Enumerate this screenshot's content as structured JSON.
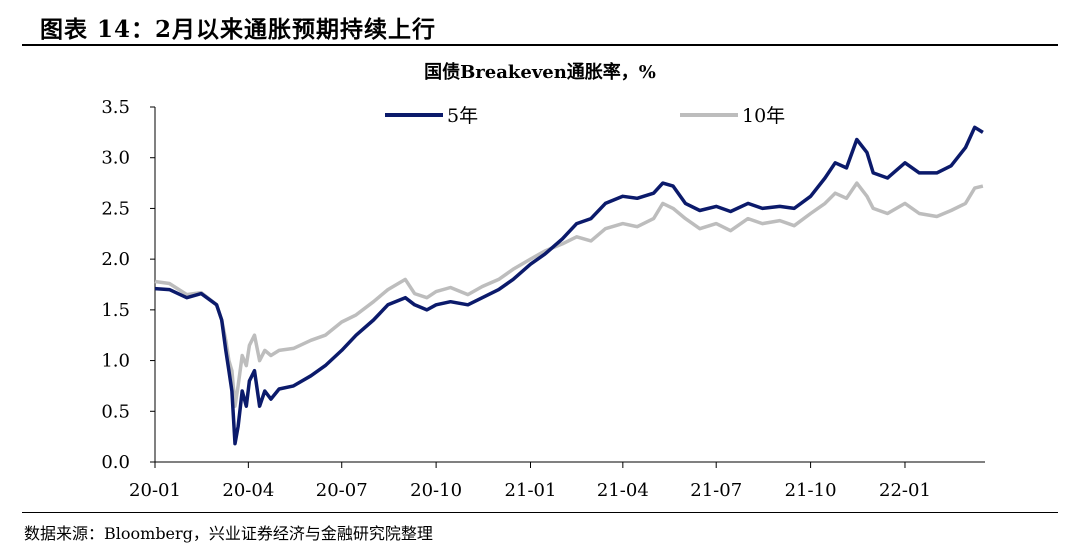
{
  "figure": {
    "title": "图表 14：2月以来通胀预期持续上行",
    "source": "数据来源：Bloomberg，兴业证券经济与金融研究院整理"
  },
  "chart_data": {
    "type": "line",
    "title": "国债Breakeven通胀率，%",
    "xlabel": "",
    "ylabel": "",
    "ylim": [
      0,
      3.5
    ],
    "xlim": [
      "2020-01",
      "2022-03-20"
    ],
    "yticks": [
      "0.0",
      "0.5",
      "1.0",
      "1.5",
      "2.0",
      "2.5",
      "3.0",
      "3.5"
    ],
    "xticks": [
      "20-01",
      "20-04",
      "20-07",
      "20-10",
      "21-01",
      "21-04",
      "21-07",
      "21-10",
      "22-01"
    ],
    "grid": false,
    "legend": "top",
    "series": [
      {
        "name": "5年",
        "color": "#0b1a6b",
        "points": [
          [
            "2020-01-01",
            1.71
          ],
          [
            "2020-01-15",
            1.7
          ],
          [
            "2020-02-01",
            1.62
          ],
          [
            "2020-02-15",
            1.66
          ],
          [
            "2020-03-01",
            1.55
          ],
          [
            "2020-03-06",
            1.4
          ],
          [
            "2020-03-10",
            1.1
          ],
          [
            "2020-03-13",
            0.9
          ],
          [
            "2020-03-16",
            0.7
          ],
          [
            "2020-03-19",
            0.18
          ],
          [
            "2020-03-22",
            0.35
          ],
          [
            "2020-03-26",
            0.7
          ],
          [
            "2020-03-30",
            0.55
          ],
          [
            "2020-04-02",
            0.8
          ],
          [
            "2020-04-07",
            0.9
          ],
          [
            "2020-04-12",
            0.55
          ],
          [
            "2020-04-17",
            0.7
          ],
          [
            "2020-04-23",
            0.62
          ],
          [
            "2020-05-01",
            0.72
          ],
          [
            "2020-05-15",
            0.75
          ],
          [
            "2020-06-01",
            0.85
          ],
          [
            "2020-06-15",
            0.95
          ],
          [
            "2020-07-01",
            1.1
          ],
          [
            "2020-07-15",
            1.25
          ],
          [
            "2020-08-01",
            1.4
          ],
          [
            "2020-08-15",
            1.55
          ],
          [
            "2020-09-01",
            1.62
          ],
          [
            "2020-09-10",
            1.55
          ],
          [
            "2020-09-22",
            1.5
          ],
          [
            "2020-10-01",
            1.55
          ],
          [
            "2020-10-15",
            1.58
          ],
          [
            "2020-11-01",
            1.55
          ],
          [
            "2020-11-15",
            1.62
          ],
          [
            "2020-12-01",
            1.7
          ],
          [
            "2020-12-15",
            1.8
          ],
          [
            "2021-01-01",
            1.95
          ],
          [
            "2021-01-15",
            2.05
          ],
          [
            "2021-02-01",
            2.2
          ],
          [
            "2021-02-15",
            2.35
          ],
          [
            "2021-03-01",
            2.4
          ],
          [
            "2021-03-15",
            2.55
          ],
          [
            "2021-04-01",
            2.62
          ],
          [
            "2021-04-15",
            2.6
          ],
          [
            "2021-05-01",
            2.65
          ],
          [
            "2021-05-10",
            2.75
          ],
          [
            "2021-05-20",
            2.72
          ],
          [
            "2021-06-01",
            2.55
          ],
          [
            "2021-06-15",
            2.48
          ],
          [
            "2021-07-01",
            2.52
          ],
          [
            "2021-07-15",
            2.47
          ],
          [
            "2021-08-01",
            2.55
          ],
          [
            "2021-08-15",
            2.5
          ],
          [
            "2021-09-01",
            2.52
          ],
          [
            "2021-09-15",
            2.5
          ],
          [
            "2021-10-01",
            2.62
          ],
          [
            "2021-10-15",
            2.8
          ],
          [
            "2021-10-25",
            2.95
          ],
          [
            "2021-11-05",
            2.9
          ],
          [
            "2021-11-15",
            3.18
          ],
          [
            "2021-11-25",
            3.05
          ],
          [
            "2021-12-01",
            2.85
          ],
          [
            "2021-12-15",
            2.8
          ],
          [
            "2022-01-01",
            2.95
          ],
          [
            "2022-01-15",
            2.85
          ],
          [
            "2022-02-01",
            2.85
          ],
          [
            "2022-02-15",
            2.92
          ],
          [
            "2022-03-01",
            3.1
          ],
          [
            "2022-03-10",
            3.3
          ],
          [
            "2022-03-18",
            3.25
          ]
        ]
      },
      {
        "name": "10年",
        "color": "#bdbdbd",
        "points": [
          [
            "2020-01-01",
            1.78
          ],
          [
            "2020-01-15",
            1.76
          ],
          [
            "2020-02-01",
            1.65
          ],
          [
            "2020-02-15",
            1.67
          ],
          [
            "2020-03-01",
            1.55
          ],
          [
            "2020-03-06",
            1.4
          ],
          [
            "2020-03-10",
            1.2
          ],
          [
            "2020-03-13",
            1.0
          ],
          [
            "2020-03-16",
            0.9
          ],
          [
            "2020-03-19",
            0.55
          ],
          [
            "2020-03-22",
            0.75
          ],
          [
            "2020-03-26",
            1.05
          ],
          [
            "2020-03-30",
            0.95
          ],
          [
            "2020-04-02",
            1.15
          ],
          [
            "2020-04-07",
            1.25
          ],
          [
            "2020-04-12",
            1.0
          ],
          [
            "2020-04-17",
            1.1
          ],
          [
            "2020-04-23",
            1.05
          ],
          [
            "2020-05-01",
            1.1
          ],
          [
            "2020-05-15",
            1.12
          ],
          [
            "2020-06-01",
            1.2
          ],
          [
            "2020-06-15",
            1.25
          ],
          [
            "2020-07-01",
            1.38
          ],
          [
            "2020-07-15",
            1.45
          ],
          [
            "2020-08-01",
            1.58
          ],
          [
            "2020-08-15",
            1.7
          ],
          [
            "2020-09-01",
            1.8
          ],
          [
            "2020-09-10",
            1.66
          ],
          [
            "2020-09-22",
            1.62
          ],
          [
            "2020-10-01",
            1.68
          ],
          [
            "2020-10-15",
            1.72
          ],
          [
            "2020-11-01",
            1.65
          ],
          [
            "2020-11-15",
            1.73
          ],
          [
            "2020-12-01",
            1.8
          ],
          [
            "2020-12-15",
            1.9
          ],
          [
            "2021-01-01",
            2.0
          ],
          [
            "2021-01-15",
            2.08
          ],
          [
            "2021-02-01",
            2.15
          ],
          [
            "2021-02-15",
            2.22
          ],
          [
            "2021-03-01",
            2.18
          ],
          [
            "2021-03-15",
            2.3
          ],
          [
            "2021-04-01",
            2.35
          ],
          [
            "2021-04-15",
            2.32
          ],
          [
            "2021-05-01",
            2.4
          ],
          [
            "2021-05-10",
            2.55
          ],
          [
            "2021-05-20",
            2.5
          ],
          [
            "2021-06-01",
            2.4
          ],
          [
            "2021-06-15",
            2.3
          ],
          [
            "2021-07-01",
            2.35
          ],
          [
            "2021-07-15",
            2.28
          ],
          [
            "2021-08-01",
            2.4
          ],
          [
            "2021-08-15",
            2.35
          ],
          [
            "2021-09-01",
            2.38
          ],
          [
            "2021-09-15",
            2.33
          ],
          [
            "2021-10-01",
            2.45
          ],
          [
            "2021-10-15",
            2.55
          ],
          [
            "2021-10-25",
            2.65
          ],
          [
            "2021-11-05",
            2.6
          ],
          [
            "2021-11-15",
            2.75
          ],
          [
            "2021-11-25",
            2.62
          ],
          [
            "2021-12-01",
            2.5
          ],
          [
            "2021-12-15",
            2.45
          ],
          [
            "2022-01-01",
            2.55
          ],
          [
            "2022-01-15",
            2.45
          ],
          [
            "2022-02-01",
            2.42
          ],
          [
            "2022-02-15",
            2.48
          ],
          [
            "2022-03-01",
            2.55
          ],
          [
            "2022-03-10",
            2.7
          ],
          [
            "2022-03-18",
            2.72
          ]
        ]
      }
    ]
  }
}
